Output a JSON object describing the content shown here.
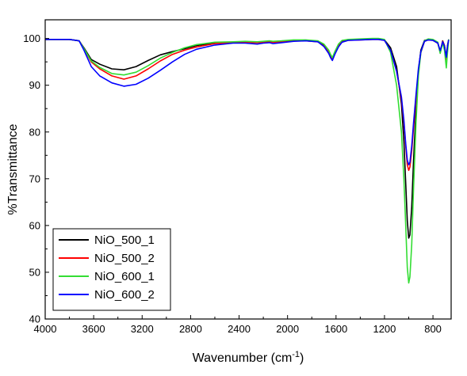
{
  "chart_data": {
    "type": "line",
    "title": "",
    "xlabel": "Wavenumber (cm",
    "xlabel_sup": "-1",
    "xlabel_end": ")",
    "ylabel": "%Transmittance",
    "xlim": [
      4000,
      650
    ],
    "ylim": [
      40,
      104
    ],
    "x_reversed": true,
    "grid": false,
    "legend_position": "bottom-left",
    "x_ticks": [
      4000,
      3600,
      3200,
      2800,
      2400,
      2000,
      1600,
      1200,
      800
    ],
    "x_tick_labels": [
      "4000",
      "3600",
      "3200",
      "2800",
      "2400",
      "2000",
      "1600",
      "1200",
      "800"
    ],
    "y_ticks": [
      40,
      50,
      60,
      70,
      80,
      90,
      100
    ],
    "y_tick_labels": [
      "40",
      "50",
      "60",
      "70",
      "80",
      "90",
      "100"
    ],
    "series": [
      {
        "name": "NiO_500_1",
        "color": "#000000",
        "x": [
          4000,
          3900,
          3800,
          3720,
          3680,
          3620,
          3550,
          3450,
          3350,
          3250,
          3150,
          3050,
          2950,
          2850,
          2750,
          2600,
          2450,
          2350,
          2250,
          2200,
          2150,
          2120,
          2050,
          1950,
          1850,
          1750,
          1700,
          1660,
          1645,
          1630,
          1610,
          1580,
          1550,
          1500,
          1400,
          1300,
          1250,
          1200,
          1150,
          1100,
          1060,
          1040,
          1025,
          1012,
          1000,
          990,
          975,
          960,
          940,
          920,
          900,
          870,
          840,
          800,
          760,
          740,
          720,
          705,
          690,
          680,
          670
        ],
        "y": [
          99.8,
          99.8,
          99.8,
          99.5,
          98.0,
          95.5,
          94.5,
          93.5,
          93.3,
          94.0,
          95.3,
          96.5,
          97.2,
          97.8,
          98.5,
          99.0,
          99.1,
          99.3,
          99.2,
          99.3,
          99.4,
          99.3,
          99.4,
          99.6,
          99.6,
          99.4,
          98.5,
          97.0,
          96.3,
          95.7,
          97.0,
          98.5,
          99.4,
          99.7,
          99.8,
          99.9,
          99.9,
          99.7,
          98.0,
          94.0,
          86.0,
          78.0,
          69.0,
          61.0,
          57.3,
          58.0,
          64.0,
          74.0,
          85.0,
          93.0,
          97.5,
          99.6,
          99.8,
          99.7,
          99.0,
          97.0,
          99.5,
          98.5,
          96.0,
          98.5,
          99.8
        ]
      },
      {
        "name": "NiO_500_2",
        "color": "#ff0000",
        "x": [
          4000,
          3900,
          3800,
          3720,
          3680,
          3620,
          3550,
          3450,
          3350,
          3250,
          3150,
          3050,
          2950,
          2850,
          2750,
          2600,
          2450,
          2350,
          2250,
          2200,
          2150,
          2120,
          2050,
          1950,
          1850,
          1750,
          1700,
          1660,
          1645,
          1630,
          1610,
          1580,
          1550,
          1500,
          1400,
          1300,
          1250,
          1200,
          1150,
          1100,
          1060,
          1040,
          1025,
          1012,
          1000,
          990,
          975,
          960,
          940,
          920,
          900,
          870,
          840,
          800,
          760,
          740,
          720,
          705,
          690,
          680,
          670
        ],
        "y": [
          99.8,
          99.8,
          99.8,
          99.5,
          97.8,
          95.0,
          93.5,
          92.0,
          91.3,
          92.0,
          93.5,
          95.2,
          96.6,
          97.5,
          98.2,
          98.9,
          99.1,
          99.2,
          99.1,
          99.2,
          99.3,
          99.2,
          99.3,
          99.5,
          99.5,
          99.3,
          98.4,
          97.0,
          96.2,
          95.6,
          96.8,
          98.4,
          99.3,
          99.6,
          99.7,
          99.8,
          99.8,
          99.6,
          97.5,
          93.0,
          87.0,
          82.0,
          77.0,
          73.0,
          71.8,
          72.5,
          76.0,
          81.0,
          87.0,
          93.0,
          97.0,
          99.4,
          99.7,
          99.6,
          99.0,
          97.2,
          99.4,
          98.4,
          95.5,
          98.2,
          99.7
        ]
      },
      {
        "name": "NiO_600_1",
        "color": "#33dd33",
        "x": [
          4000,
          3900,
          3800,
          3720,
          3680,
          3620,
          3550,
          3450,
          3350,
          3250,
          3150,
          3050,
          2950,
          2850,
          2750,
          2600,
          2450,
          2350,
          2250,
          2200,
          2150,
          2120,
          2050,
          1950,
          1850,
          1750,
          1700,
          1660,
          1645,
          1630,
          1610,
          1580,
          1550,
          1500,
          1400,
          1300,
          1250,
          1200,
          1150,
          1100,
          1060,
          1040,
          1025,
          1012,
          1000,
          990,
          975,
          960,
          940,
          920,
          900,
          870,
          840,
          800,
          760,
          740,
          720,
          705,
          690,
          680,
          670
        ],
        "y": [
          99.8,
          99.8,
          99.8,
          99.5,
          97.8,
          95.2,
          93.8,
          92.5,
          92.2,
          92.8,
          94.2,
          95.8,
          97.0,
          98.0,
          98.7,
          99.2,
          99.3,
          99.4,
          99.3,
          99.4,
          99.5,
          99.4,
          99.5,
          99.7,
          99.7,
          99.5,
          98.8,
          97.5,
          96.6,
          95.9,
          97.2,
          98.8,
          99.6,
          99.8,
          99.9,
          100.0,
          100.0,
          99.8,
          97.0,
          90.0,
          80.0,
          70.0,
          60.0,
          51.0,
          47.7,
          49.0,
          56.0,
          68.0,
          82.0,
          92.0,
          97.0,
          99.5,
          99.9,
          99.8,
          99.2,
          96.8,
          99.0,
          97.5,
          93.7,
          97.0,
          99.8
        ]
      },
      {
        "name": "NiO_600_2",
        "color": "#0000ff",
        "x": [
          4000,
          3900,
          3800,
          3720,
          3680,
          3620,
          3550,
          3450,
          3350,
          3250,
          3150,
          3050,
          2950,
          2850,
          2750,
          2600,
          2450,
          2350,
          2250,
          2200,
          2150,
          2120,
          2050,
          1950,
          1850,
          1750,
          1700,
          1660,
          1645,
          1630,
          1610,
          1580,
          1550,
          1500,
          1400,
          1300,
          1250,
          1200,
          1150,
          1100,
          1060,
          1040,
          1025,
          1012,
          1000,
          990,
          975,
          960,
          940,
          920,
          900,
          870,
          840,
          800,
          760,
          740,
          720,
          705,
          690,
          680,
          670
        ],
        "y": [
          99.8,
          99.8,
          99.8,
          99.5,
          97.5,
          94.0,
          92.0,
          90.5,
          89.8,
          90.2,
          91.5,
          93.2,
          95.0,
          96.6,
          97.7,
          98.6,
          99.0,
          99.0,
          98.8,
          99.0,
          99.1,
          98.9,
          99.1,
          99.4,
          99.5,
          99.3,
          98.3,
          96.8,
          95.9,
          95.3,
          96.6,
          98.2,
          99.2,
          99.6,
          99.7,
          99.8,
          99.8,
          99.6,
          97.5,
          93.0,
          87.5,
          82.5,
          77.5,
          74.0,
          73.0,
          73.5,
          77.0,
          82.0,
          88.0,
          93.5,
          97.2,
          99.4,
          99.7,
          99.6,
          99.0,
          97.4,
          99.3,
          98.3,
          96.0,
          98.3,
          99.7
        ]
      }
    ]
  }
}
